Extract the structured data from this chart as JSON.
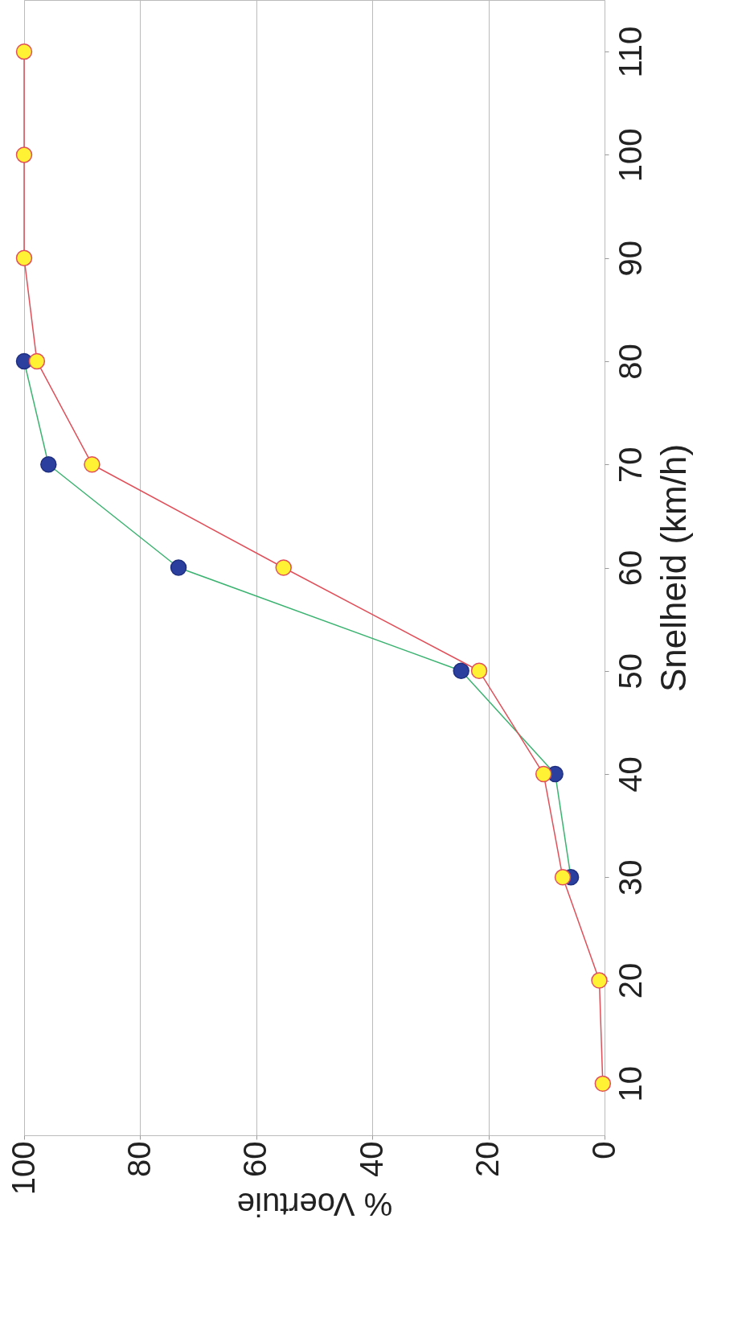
{
  "chart_data": {
    "type": "line",
    "xlabel": "% Voertuie",
    "ylabel": "Snelheid (km/h)",
    "series": [
      {
        "color": "#e0505a",
        "x": [
          0.3,
          0.9,
          7.2,
          10.5,
          21.6,
          55.3,
          88.3,
          97.8,
          100,
          100,
          100
        ],
        "values": [
          10,
          20,
          30,
          40,
          50,
          60,
          70,
          80,
          90,
          100,
          110
        ]
      },
      {
        "color": "#3cb371",
        "x": [
          5.8,
          8.5,
          24.7,
          73.4,
          95.8,
          100
        ],
        "values": [
          30,
          40,
          50,
          60,
          70,
          80
        ]
      }
    ],
    "xlim": [
      100,
      0
    ],
    "xticks": [
      100,
      80,
      60,
      40,
      20,
      0
    ],
    "ylim": [
      5,
      115
    ],
    "yticks": [
      10,
      20,
      30,
      40,
      50,
      60,
      70,
      80,
      90,
      100,
      110
    ],
    "grid": "x",
    "marker": "circle",
    "line_style": "solid"
  }
}
